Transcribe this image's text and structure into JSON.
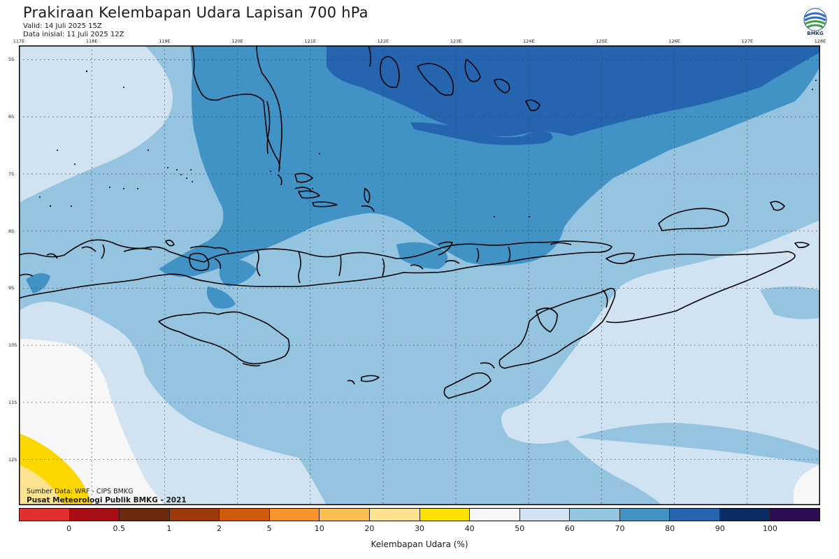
{
  "header": {
    "title": "Prakiraan Kelembapan Udara Lapisan 700 hPa",
    "valid": "Valid: 14 Juli 2025 15Z",
    "init": "Data inisial: 11 Juli 2025 12Z",
    "logo_text": "BMKG"
  },
  "map": {
    "lon_labels": [
      "117E",
      "118E",
      "119E",
      "120E",
      "121E",
      "122E",
      "123E",
      "124E",
      "125E",
      "126E",
      "127E",
      "128E"
    ],
    "lat_labels": [
      "5S",
      "6S",
      "7S",
      "8S",
      "9S",
      "10S",
      "11S",
      "12S"
    ],
    "lon_range": [
      117,
      128
    ],
    "lat_range": [
      -4.75,
      -12.8
    ],
    "grid": true,
    "fields": [
      {
        "name": "dominant",
        "range": "60-70",
        "color": "#94c4df"
      },
      {
        "name": "dry",
        "range": "50-60",
        "color": "#d1e3f0"
      },
      {
        "name": "moist",
        "range": "70-80",
        "color": "#4192c5"
      },
      {
        "name": "very-moist",
        "range": "80-90",
        "color": "#2565b0"
      },
      {
        "name": "driest",
        "range": "40-50",
        "color": "#f7f7f7"
      },
      {
        "name": "yellow",
        "range": "30-40",
        "color": "#ffd700"
      },
      {
        "name": "pale-yellow",
        "range": "20-30",
        "color": "#fde290"
      }
    ]
  },
  "footer": {
    "source": "Sumber Data: WRF - CIPS BMKG",
    "institution": "Pusat Meteorologi Publik BMKG - 2021"
  },
  "colorbar": {
    "label": "Kelembapan Udara (%)",
    "colors": [
      "#e03030",
      "#a80f14",
      "#6e2a0e",
      "#9b3a08",
      "#cf5b08",
      "#f9952b",
      "#fcbd52",
      "#fde290",
      "#ffe000",
      "#f7f7f7",
      "#d1e3f0",
      "#94c4df",
      "#4192c5",
      "#2565b0",
      "#0b2d65",
      "#2c0c54"
    ],
    "ticks": [
      "0",
      "0.5",
      "1",
      "2",
      "5",
      "10",
      "20",
      "30",
      "40",
      "50",
      "60",
      "70",
      "80",
      "90",
      "100"
    ]
  }
}
